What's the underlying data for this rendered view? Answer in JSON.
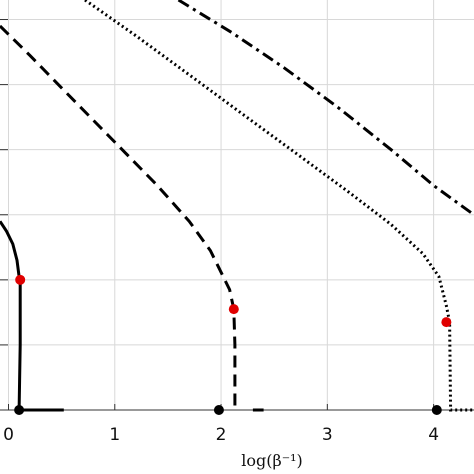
{
  "chart_data": {
    "type": "line",
    "xlabel": "log(β⁻¹)",
    "x_ticks": [
      "0",
      "1",
      "2",
      "3",
      "4"
    ],
    "xlim": [
      -0.08,
      4.38
    ],
    "ylim": [
      0,
      6.3
    ],
    "grid": true,
    "colors": {
      "curve": "#000000",
      "marker_red": "#e00000",
      "marker_black": "#000000",
      "grid": "#d8d8d8"
    },
    "series": [
      {
        "style": "solid",
        "points": [
          [
            -0.08,
            2.9
          ],
          [
            -0.02,
            2.75
          ],
          [
            0.04,
            2.55
          ],
          [
            0.08,
            2.3
          ],
          [
            0.1,
            2.05
          ],
          [
            0.11,
            2.0
          ],
          [
            0.11,
            1.0
          ],
          [
            0.1,
            0.0
          ],
          [
            0.52,
            0.0
          ]
        ],
        "red_marker": [
          0.11,
          2.0
        ],
        "black_marker": [
          0.1,
          0.0
        ]
      },
      {
        "style": "dashed",
        "points": [
          [
            -0.08,
            5.9
          ],
          [
            0.2,
            5.45
          ],
          [
            0.5,
            4.95
          ],
          [
            0.8,
            4.45
          ],
          [
            1.1,
            3.95
          ],
          [
            1.4,
            3.45
          ],
          [
            1.7,
            2.9
          ],
          [
            1.9,
            2.45
          ],
          [
            2.02,
            2.05
          ],
          [
            2.08,
            1.85
          ],
          [
            2.12,
            1.55
          ],
          [
            2.13,
            1.0
          ],
          [
            2.13,
            0.0
          ]
        ],
        "red_marker": [
          2.12,
          1.55
        ],
        "black_marker": [
          1.98,
          0.0
        ],
        "tail": [
          [
            2.3,
            0.0
          ],
          [
            2.4,
            0.0
          ]
        ]
      },
      {
        "style": "dotted",
        "points": [
          [
            0.72,
            6.3
          ],
          [
            1.2,
            5.75
          ],
          [
            1.7,
            5.15
          ],
          [
            2.2,
            4.55
          ],
          [
            2.7,
            3.95
          ],
          [
            3.2,
            3.35
          ],
          [
            3.6,
            2.85
          ],
          [
            3.9,
            2.4
          ],
          [
            4.05,
            2.05
          ],
          [
            4.12,
            1.6
          ],
          [
            4.15,
            1.35
          ],
          [
            4.16,
            0.0
          ],
          [
            4.38,
            0.0
          ]
        ],
        "red_marker": [
          4.12,
          1.35
        ],
        "black_marker": [
          4.03,
          0.0
        ]
      },
      {
        "style": "dashdot",
        "points": [
          [
            1.6,
            6.3
          ],
          [
            2.1,
            5.8
          ],
          [
            2.6,
            5.25
          ],
          [
            3.1,
            4.65
          ],
          [
            3.6,
            4.0
          ],
          [
            4.0,
            3.45
          ],
          [
            4.38,
            3.0
          ]
        ]
      }
    ]
  }
}
